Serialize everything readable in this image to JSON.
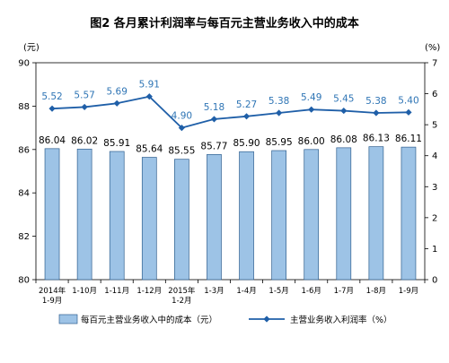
{
  "chart_data": {
    "type": "bar+line",
    "title": "图2 各月累计利润率与每百元主营业务收入中的成本",
    "left_unit": "(元)",
    "right_unit": "(%)",
    "categories": [
      [
        "2014年",
        "1-9月"
      ],
      [
        "1-10月"
      ],
      [
        "1-11月"
      ],
      [
        "1-12月"
      ],
      [
        "2015年",
        "1-2月"
      ],
      [
        "1-3月"
      ],
      [
        "1-4月"
      ],
      [
        "1-5月"
      ],
      [
        "1-6月"
      ],
      [
        "1-7月"
      ],
      [
        "1-8月"
      ],
      [
        "1-9月"
      ]
    ],
    "left_axis": {
      "min": 80,
      "max": 90,
      "ticks": [
        80,
        82,
        84,
        86,
        88,
        90
      ]
    },
    "right_axis": {
      "min": 0,
      "max": 7,
      "ticks": [
        0,
        1,
        2,
        3,
        4,
        5,
        6,
        7
      ]
    },
    "series": [
      {
        "name": "每百元主营业务收入中的成本（元）",
        "type": "bar",
        "axis": "left",
        "values": [
          86.04,
          86.02,
          85.91,
          85.64,
          85.55,
          85.77,
          85.9,
          85.95,
          86.0,
          86.08,
          86.13,
          86.11
        ],
        "labels": [
          "86.04",
          "86.02",
          "85.91",
          "85.64",
          "85.55",
          "85.77",
          "85.90",
          "85.95",
          "86.00",
          "86.08",
          "86.13",
          "86.11"
        ],
        "color": "#9dc3e6",
        "stroke": "#2f5f8f"
      },
      {
        "name": "主营业务收入利润率（%）",
        "type": "line",
        "axis": "right",
        "values": [
          5.52,
          5.57,
          5.69,
          5.91,
          4.9,
          5.18,
          5.27,
          5.38,
          5.49,
          5.45,
          5.38,
          5.4
        ],
        "labels": [
          "5.52",
          "5.57",
          "5.69",
          "5.91",
          "4.90",
          "5.18",
          "5.27",
          "5.38",
          "5.49",
          "5.45",
          "5.38",
          "5.40"
        ],
        "color": "#1f5fa8",
        "label_color": "#2f75b5"
      }
    ],
    "legend_placement": "bottom",
    "grid": false
  }
}
